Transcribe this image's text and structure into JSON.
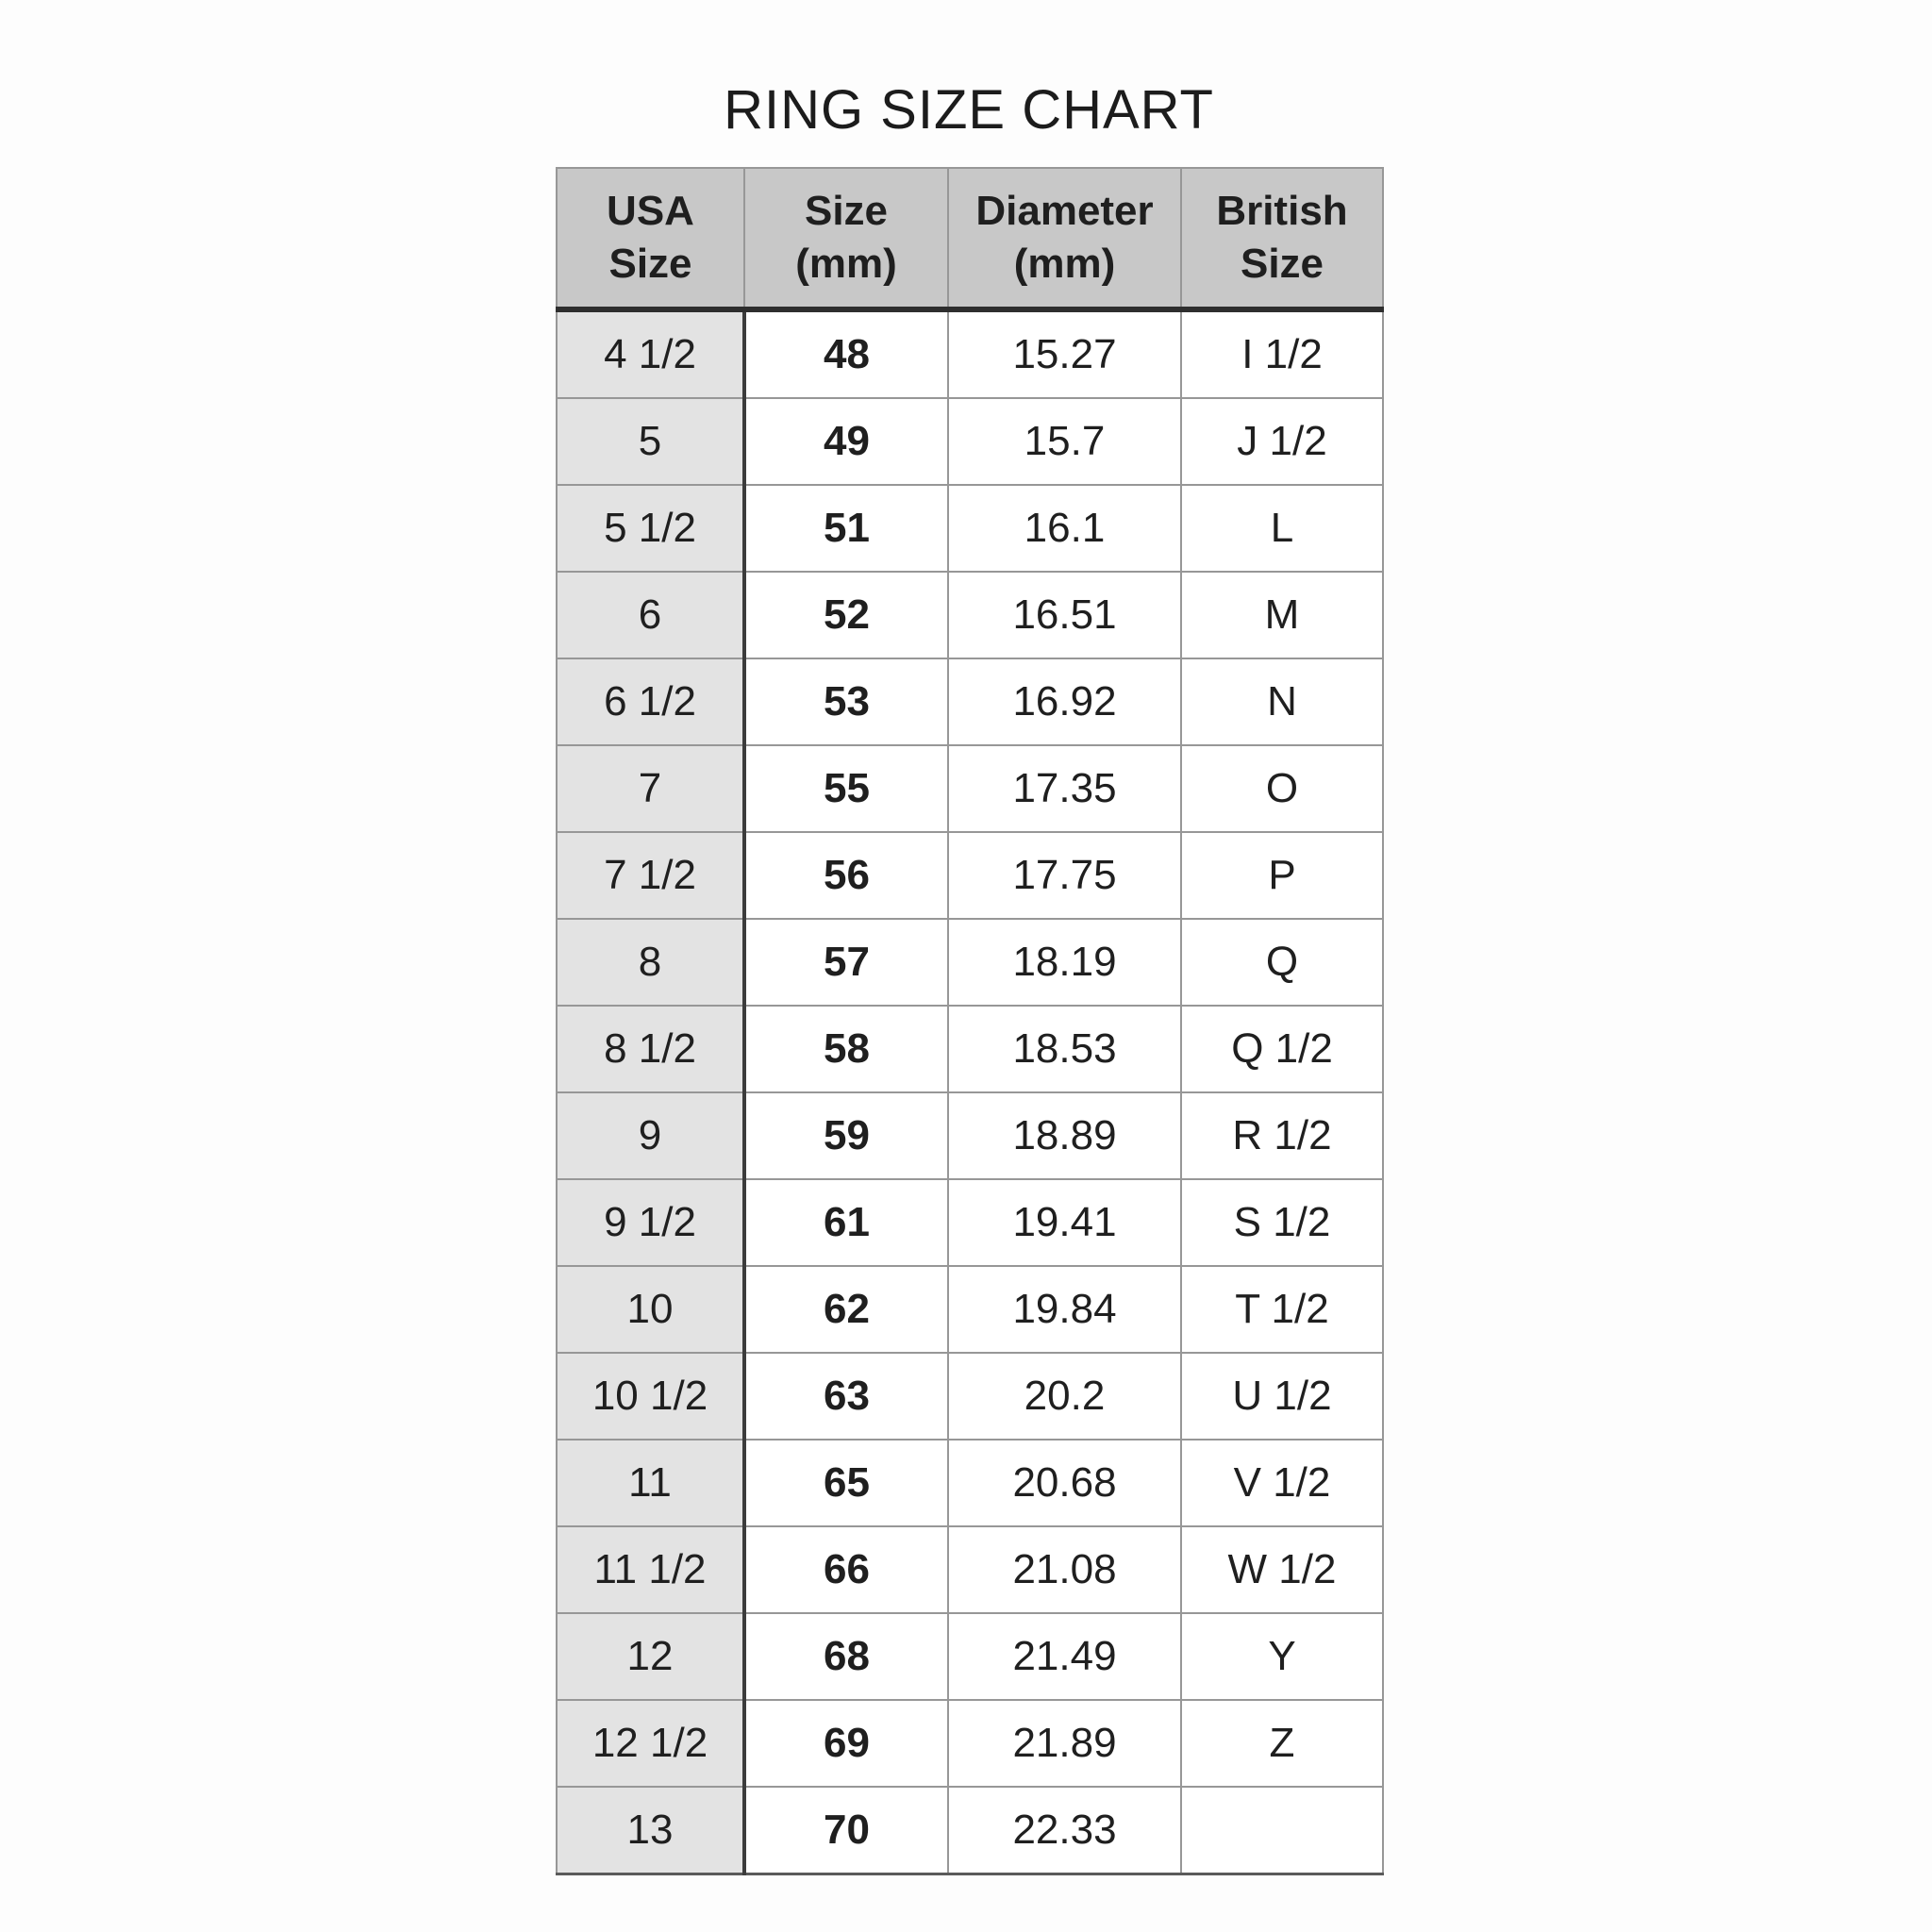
{
  "title": "RING SIZE CHART",
  "table": {
    "headers_display": [
      "USA\nSize",
      "Size\n(mm)",
      "Diameter\n(mm)",
      "British\nSize"
    ]
  },
  "chart_data": {
    "type": "table",
    "title": "RING SIZE CHART",
    "columns": [
      "USA Size",
      "Size (mm)",
      "Diameter (mm)",
      "British Size"
    ],
    "rows": [
      [
        "4 1/2",
        "48",
        "15.27",
        "I 1/2"
      ],
      [
        "5",
        "49",
        "15.7",
        "J 1/2"
      ],
      [
        "5 1/2",
        "51",
        "16.1",
        "L"
      ],
      [
        "6",
        "52",
        "16.51",
        "M"
      ],
      [
        "6 1/2",
        "53",
        "16.92",
        "N"
      ],
      [
        "7",
        "55",
        "17.35",
        "O"
      ],
      [
        "7 1/2",
        "56",
        "17.75",
        "P"
      ],
      [
        "8",
        "57",
        "18.19",
        "Q"
      ],
      [
        "8 1/2",
        "58",
        "18.53",
        "Q 1/2"
      ],
      [
        "9",
        "59",
        "18.89",
        "R 1/2"
      ],
      [
        "9 1/2",
        "61",
        "19.41",
        "S 1/2"
      ],
      [
        "10",
        "62",
        "19.84",
        "T 1/2"
      ],
      [
        "10 1/2",
        "63",
        "20.2",
        "U 1/2"
      ],
      [
        "11",
        "65",
        "20.68",
        "V 1/2"
      ],
      [
        "11 1/2",
        "66",
        "21.08",
        "W 1/2"
      ],
      [
        "12",
        "68",
        "21.49",
        "Y"
      ],
      [
        "12 1/2",
        "69",
        "21.89",
        "Z"
      ],
      [
        "13",
        "70",
        "22.33",
        ""
      ]
    ]
  },
  "colors": {
    "page_bg": "#fdfdfd",
    "header_bg": "#c8c8c8",
    "first_col_bg": "#e3e3e3",
    "cell_bg": "#ffffff",
    "grid_line": "#979797",
    "heavy_line": "#2e2e2e",
    "text": "#1f1f1f"
  }
}
